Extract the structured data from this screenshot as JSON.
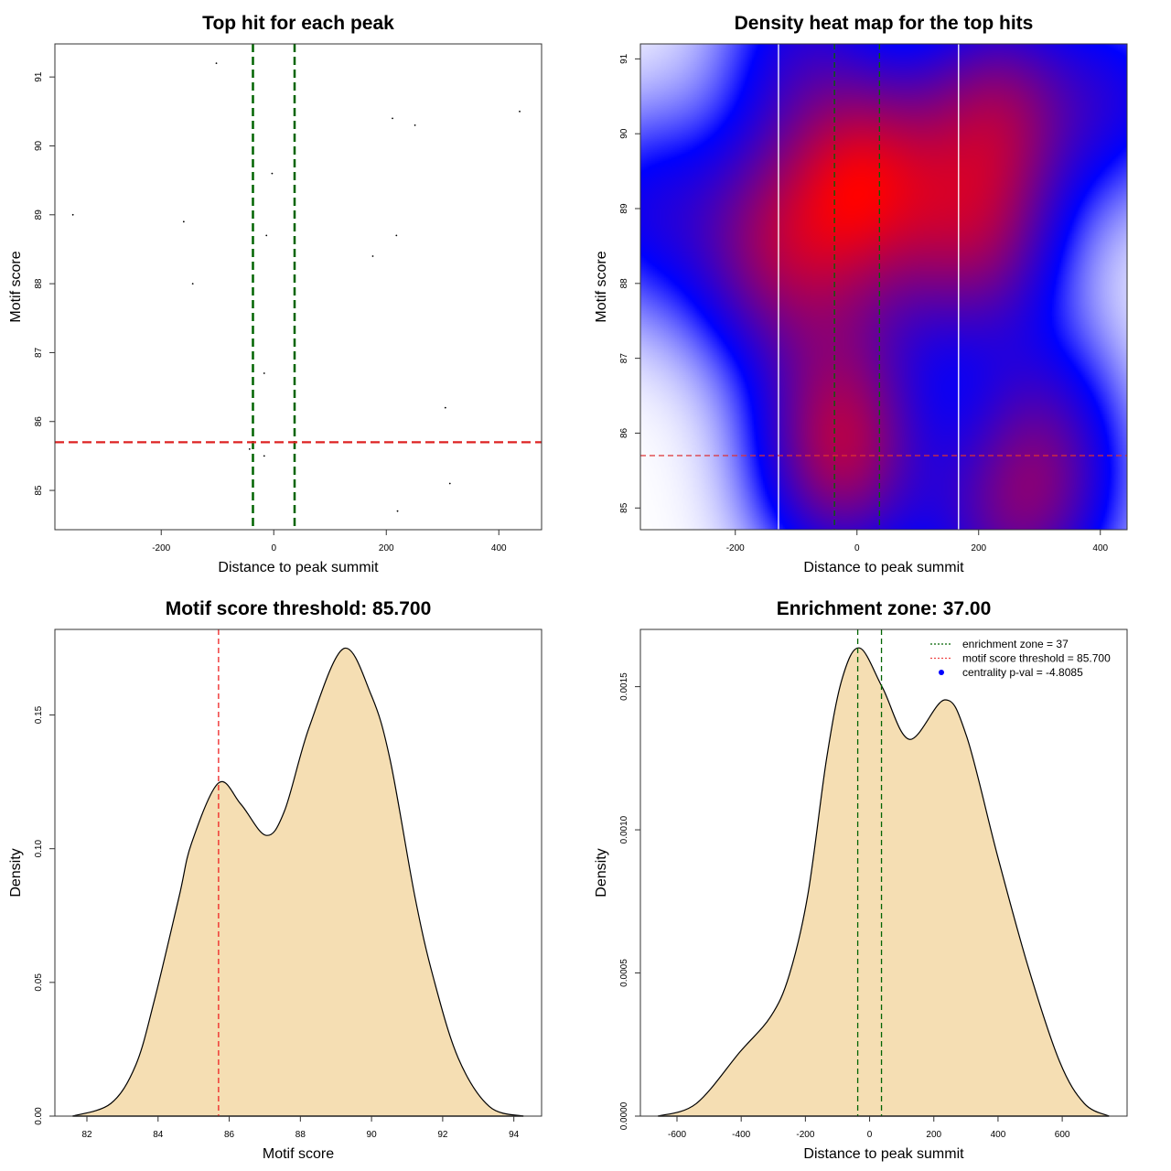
{
  "chart_data": [
    {
      "type": "scatter",
      "title": "Top hit for each peak",
      "xlabel": "Distance to peak summit",
      "ylabel": "Motif score",
      "xlim": [
        -389,
        476
      ],
      "ylim": [
        84.43,
        91.48
      ],
      "xticks": [
        -200,
        0,
        200,
        400
      ],
      "yticks": [
        85,
        86,
        87,
        88,
        89,
        90,
        91
      ],
      "points": [
        [
          -102,
          91.2
        ],
        [
          437,
          90.5
        ],
        [
          211,
          90.4
        ],
        [
          251,
          90.3
        ],
        [
          -3,
          89.6
        ],
        [
          37,
          89.6
        ],
        [
          -357,
          89.0
        ],
        [
          -160,
          88.9
        ],
        [
          -13,
          88.7
        ],
        [
          218,
          88.7
        ],
        [
          176,
          88.4
        ],
        [
          -144,
          88.0
        ],
        [
          -17,
          86.7
        ],
        [
          305,
          86.2
        ],
        [
          -43,
          85.6
        ],
        [
          -17,
          85.5
        ],
        [
          313,
          85.1
        ],
        [
          220,
          84.7
        ]
      ],
      "enrichment_lines": [
        -37,
        37
      ],
      "threshold_line": 85.7,
      "colors": {
        "points": "#000000",
        "enrichment": "#006400",
        "threshold": "#dd2222"
      }
    },
    {
      "type": "heatmap",
      "title": "Density heat map for the top hits",
      "xlabel": "Distance to peak summit",
      "ylabel": "Motif score",
      "xlim": [
        -356,
        444
      ],
      "ylim": [
        84.71,
        91.2
      ],
      "xticks": [
        -200,
        0,
        200,
        400
      ],
      "yticks": [
        85,
        86,
        87,
        88,
        89,
        90,
        91
      ],
      "white_lines": [
        -129,
        167
      ],
      "enrichment_lines": [
        -37,
        37
      ],
      "threshold_line": 85.7,
      "colormap": [
        "#ffffff",
        "#0000ff",
        "#ff0000"
      ],
      "colors": {
        "enrichment": "#006400",
        "threshold": "#dd3333",
        "white_lines": "#ffffff"
      }
    },
    {
      "type": "area",
      "title": "Motif score threshold: 85.700",
      "xlabel": "Motif score",
      "ylabel": "Density",
      "xlim": [
        81.1,
        94.78
      ],
      "ylim": [
        0,
        0.182
      ],
      "xticks": [
        82,
        84,
        86,
        88,
        90,
        92,
        94
      ],
      "yticks": [
        0,
        0.05,
        0.1,
        0.15
      ],
      "ytick_labels": [
        "0.00",
        "0.05",
        "0.10",
        "0.15"
      ],
      "x": [
        81.6,
        82.67,
        83.37,
        83.89,
        84.59,
        84.94,
        85.7,
        86.33,
        87.03,
        87.55,
        88.25,
        89.21,
        89.99,
        90.52,
        91.22,
        91.74,
        92.44,
        93.31,
        94.27
      ],
      "y": [
        0,
        0.0047,
        0.019,
        0.043,
        0.082,
        0.102,
        0.1246,
        0.1166,
        0.105,
        0.114,
        0.1455,
        0.1748,
        0.1575,
        0.1334,
        0.082,
        0.0517,
        0.0216,
        0.0036,
        0
      ],
      "threshold_line": 85.7,
      "colors": {
        "fill": "#F5DEB3",
        "threshold": "#ee2222"
      }
    },
    {
      "type": "area",
      "title": "Enrichment zone: 37.00",
      "xlabel": "Distance to peak summit",
      "ylabel": "Density",
      "xlim": [
        -714,
        802
      ],
      "ylim": [
        0,
        0.0017
      ],
      "xticks": [
        -600,
        -400,
        -200,
        0,
        200,
        400,
        600
      ],
      "yticks": [
        0,
        0.0005,
        0.001,
        0.0015
      ],
      "ytick_labels": [
        "0.0000",
        "0.0005",
        "0.0010",
        "0.0015"
      ],
      "x": [
        -659,
        -540,
        -404,
        -308,
        -250,
        -192,
        -134,
        -85,
        -31,
        40,
        124,
        234,
        302,
        398,
        495,
        592,
        669,
        746
      ],
      "y": [
        0,
        4.38e-05,
        0.000224,
        0.000348,
        0.000494,
        0.000776,
        0.001249,
        0.00153,
        0.001635,
        0.001497,
        0.001316,
        0.001454,
        0.001327,
        0.000911,
        0.000517,
        0.00019,
        4.38e-05,
        0
      ],
      "enrichment_lines": [
        -37,
        37
      ],
      "legend": [
        {
          "label": "enrichment zone = 37",
          "symbol": "dotted-line",
          "color": "#006400"
        },
        {
          "label": "motif score threshold = 85.700",
          "symbol": "dotted-line",
          "color": "#ee4444"
        },
        {
          "label": "centrality p-val = -4.8085",
          "symbol": "dot",
          "color": "#0000ff"
        }
      ],
      "legend_position": "top-right",
      "colors": {
        "fill": "#F5DEB3",
        "enrichment": "#006400"
      }
    }
  ]
}
